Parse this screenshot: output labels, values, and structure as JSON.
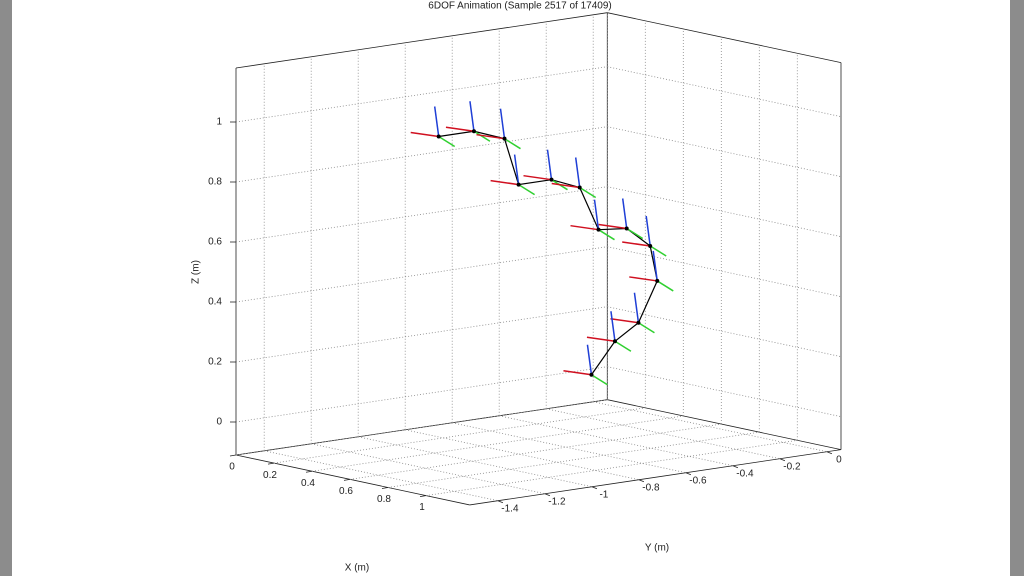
{
  "chart_data": {
    "type": "line3d",
    "title": "6DOF Animation (Sample 2517 of 17409)",
    "xlabel": "X (m)",
    "ylabel": "Y (m)",
    "zlabel": "Z (m)",
    "xlim": [
      0,
      1.23
    ],
    "ylim": [
      -1.52,
      0.06
    ],
    "zlim": [
      -0.11,
      1.18
    ],
    "xticks": [
      0,
      0.2,
      0.4,
      0.6,
      0.8,
      1
    ],
    "yticks": [
      -1.4,
      -1.2,
      -1,
      -0.8,
      -0.6,
      -0.4,
      -0.2,
      0
    ],
    "zticks": [
      0,
      0.2,
      0.4,
      0.6,
      0.8,
      1
    ],
    "grid": true,
    "color": "#000000",
    "x": [
      0.3,
      0.3,
      0.3,
      0.3,
      0.3,
      0.3,
      0.3,
      0.3,
      0.3,
      0.3,
      0.3,
      0.3,
      0.3
    ],
    "y": [
      -0.9,
      -0.75,
      -0.62,
      -0.56,
      -0.42,
      -0.3,
      -0.22,
      -0.1,
      0,
      0.03,
      -0.05,
      -0.15,
      -0.25
    ],
    "z": [
      0.92,
      0.92,
      0.88,
      0.72,
      0.72,
      0.68,
      0.53,
      0.52,
      0.45,
      0.33,
      0.2,
      0.15,
      0.05
    ]
  }
}
